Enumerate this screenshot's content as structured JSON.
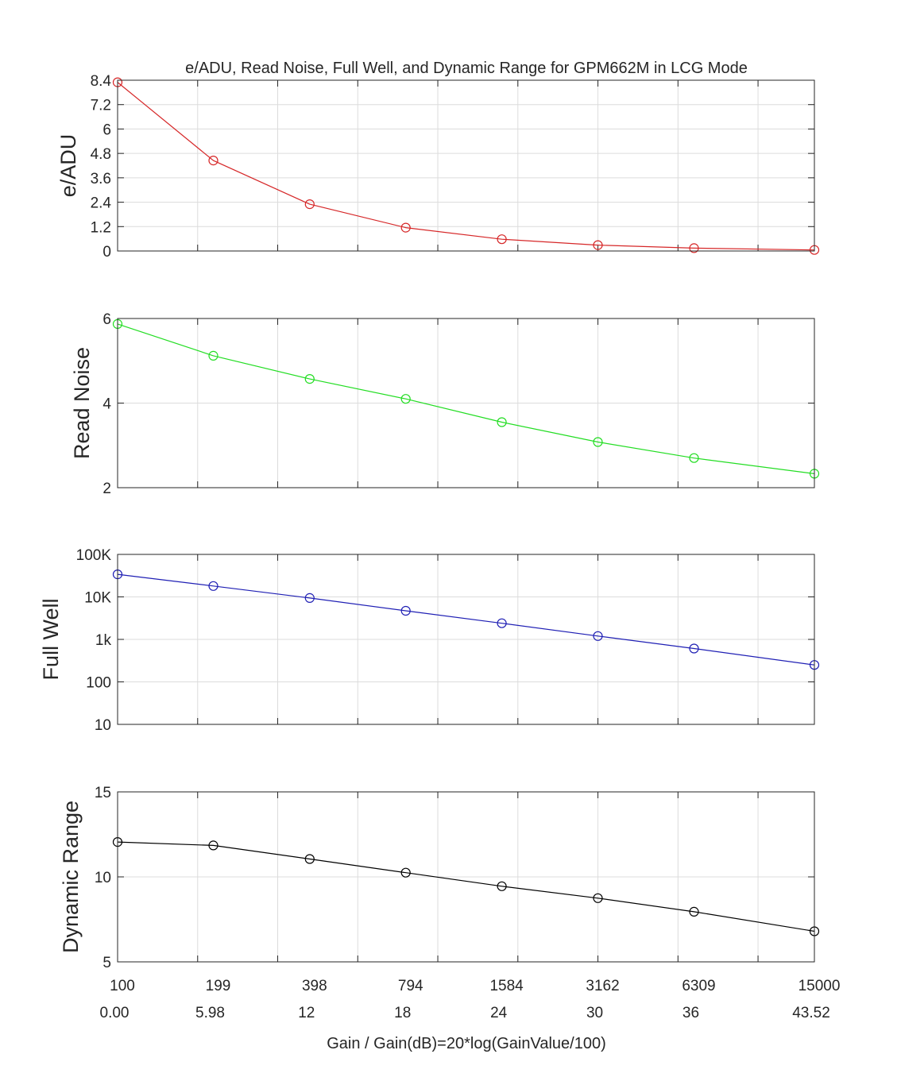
{
  "chart_data": [
    {
      "type": "line",
      "title": "e/ADU, Read Noise, Full Well, and Dynamic Range for GPM662M in LCG Mode",
      "ylabel": "e/ADU",
      "color": "#d62728",
      "ylim": [
        0,
        8.4
      ],
      "yscale": "linear",
      "yticks": [
        0,
        1.2,
        2.4,
        3.6,
        4.8,
        6,
        7.2,
        8.4
      ],
      "ytick_labels": [
        "0",
        "1.2",
        "2.4",
        "3.6",
        "4.8",
        "6",
        "7.2",
        "8.4"
      ],
      "grid": true,
      "series": [
        {
          "values": [
            8.3,
            4.45,
            2.3,
            1.15,
            0.58,
            0.29,
            0.14,
            0.05
          ]
        }
      ]
    },
    {
      "type": "line",
      "ylabel": "Read Noise",
      "color": "#22dd22",
      "ylim": [
        2,
        6
      ],
      "yscale": "linear",
      "yticks": [
        2,
        4,
        6
      ],
      "ytick_labels": [
        "2",
        "4",
        "6"
      ],
      "grid": true,
      "series": [
        {
          "values": [
            5.87,
            5.12,
            4.57,
            4.1,
            3.55,
            3.08,
            2.7,
            2.33
          ]
        }
      ]
    },
    {
      "type": "line",
      "ylabel": "Full Well",
      "color": "#1f1fb4",
      "ylim": [
        10,
        100000
      ],
      "yscale": "log",
      "yticks": [
        10,
        100,
        1000,
        10000,
        100000
      ],
      "ytick_labels": [
        "10",
        "100",
        "1k",
        "10K",
        "100K"
      ],
      "grid": true,
      "series": [
        {
          "values": [
            34000,
            18000,
            9400,
            4700,
            2400,
            1200,
            610,
            250
          ]
        }
      ]
    },
    {
      "type": "line",
      "ylabel": "Dynamic Range",
      "color": "#000000",
      "ylim": [
        5,
        15
      ],
      "yscale": "linear",
      "yticks": [
        5,
        10,
        15
      ],
      "ytick_labels": [
        "5",
        "10",
        "15"
      ],
      "grid": true,
      "series": [
        {
          "values": [
            12.05,
            11.85,
            11.05,
            10.25,
            9.45,
            8.75,
            7.95,
            6.8
          ]
        }
      ]
    }
  ],
  "x_axis": {
    "gain_labels": [
      "100",
      "199",
      "398",
      "794",
      "1584",
      "3162",
      "6309",
      "15000"
    ],
    "db_labels": [
      "0.00",
      "5.98",
      "12",
      "18",
      "24",
      "30",
      "36",
      "43.52"
    ],
    "db_values": [
      0,
      5.98,
      12,
      18,
      24,
      30,
      36,
      43.52
    ],
    "xlim": [
      0,
      43.52
    ],
    "xticks": [
      0,
      5,
      10,
      15,
      20,
      25,
      30,
      35,
      40,
      43.52
    ],
    "xlabel": "Gain / Gain(dB)=20*log(GainValue/100)"
  }
}
